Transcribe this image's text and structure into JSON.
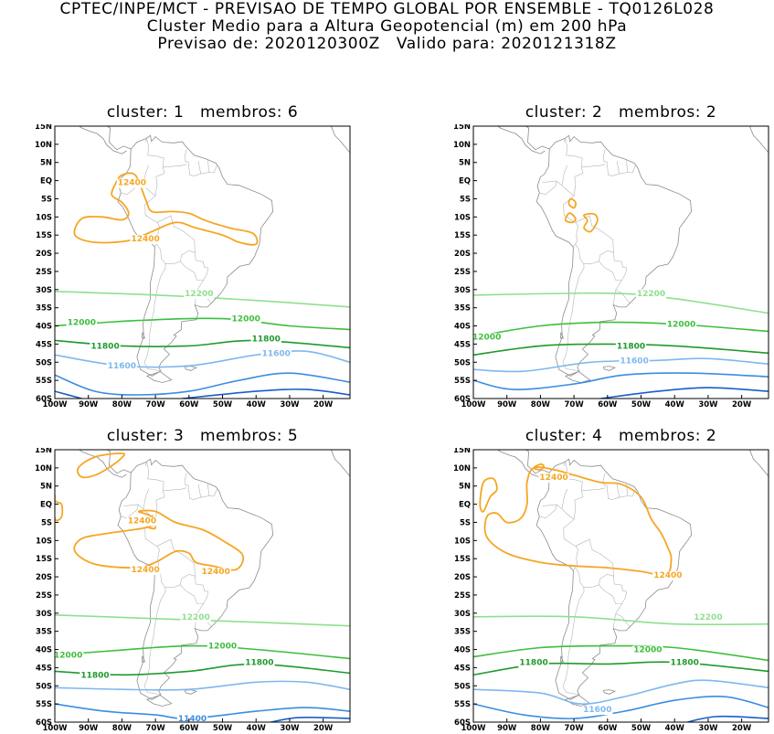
{
  "header": {
    "line1": "CPTEC/INPE/MCT - PREVISAO DE TEMPO GLOBAL POR ENSEMBLE - TQ0126L028",
    "line2": "Cluster Medio para a Altura Geopotencial (m) em 200 hPa",
    "line3": "Previsao de: 2020120300Z   Valido para: 2020121318Z"
  },
  "axes": {
    "lat_labels": [
      "15N",
      "10N",
      "5N",
      "EQ",
      "5S",
      "10S",
      "15S",
      "20S",
      "25S",
      "30S",
      "35S",
      "40S",
      "45S",
      "50S",
      "55S",
      "60S"
    ],
    "lon_labels": [
      "100W",
      "90W",
      "80W",
      "70W",
      "60W",
      "50W",
      "40W",
      "30W",
      "20W"
    ],
    "lat_range": [
      -60,
      15
    ],
    "lon_range": [
      -100,
      -12
    ]
  },
  "colors": {
    "c12400": "#f5a623",
    "c12200": "#8ee08e",
    "c12000": "#3cbf3c",
    "c11800": "#1f9a2c",
    "c11600": "#7db8f0",
    "c11400": "#3a8de0",
    "c11200": "#1a5ec8",
    "coast": "#8c8c8c"
  },
  "panels": [
    {
      "title": "cluster: 1   membros: 6",
      "labels": [
        {
          "text": "12400",
          "lon": -77,
          "lat": -0.5,
          "level": "c12400"
        },
        {
          "text": "12400",
          "lon": -73,
          "lat": -16,
          "level": "c12400"
        },
        {
          "text": "12200",
          "lon": -57,
          "lat": -31,
          "level": "c12200"
        },
        {
          "text": "12000",
          "lon": -92,
          "lat": -39,
          "level": "c12000"
        },
        {
          "text": "12000",
          "lon": -43,
          "lat": -38,
          "level": "c12000"
        },
        {
          "text": "11800",
          "lon": -85,
          "lat": -45.5,
          "level": "c11800"
        },
        {
          "text": "11800",
          "lon": -37,
          "lat": -43.5,
          "level": "c11800"
        },
        {
          "text": "11600",
          "lon": -34,
          "lat": -47.5,
          "level": "c11600"
        },
        {
          "text": "11600",
          "lon": -80,
          "lat": -51,
          "level": "c11600"
        }
      ]
    },
    {
      "title": "cluster: 2   membros: 2",
      "labels": [
        {
          "text": "12200",
          "lon": -47,
          "lat": -31,
          "level": "c12200"
        },
        {
          "text": "12000",
          "lon": -96,
          "lat": -43,
          "level": "c12000"
        },
        {
          "text": "12000",
          "lon": -38,
          "lat": -39.5,
          "level": "c12000"
        },
        {
          "text": "11800",
          "lon": -53,
          "lat": -45.5,
          "level": "c11800"
        },
        {
          "text": "11600",
          "lon": -52,
          "lat": -49.5,
          "level": "c11600"
        }
      ]
    },
    {
      "title": "cluster: 3   membros: 5",
      "labels": [
        {
          "text": "12400",
          "lon": -74,
          "lat": -4.5,
          "level": "c12400"
        },
        {
          "text": "12400",
          "lon": -73,
          "lat": -18,
          "level": "c12400"
        },
        {
          "text": "12400",
          "lon": -52,
          "lat": -18.5,
          "level": "c12400"
        },
        {
          "text": "12200",
          "lon": -58,
          "lat": -31,
          "level": "c12200"
        },
        {
          "text": "12000",
          "lon": -96,
          "lat": -41.5,
          "level": "c12000"
        },
        {
          "text": "12000",
          "lon": -50,
          "lat": -39,
          "level": "c12000"
        },
        {
          "text": "11800",
          "lon": -88,
          "lat": -47,
          "level": "c11800"
        },
        {
          "text": "11800",
          "lon": -39,
          "lat": -43.5,
          "level": "c11800"
        },
        {
          "text": "11400",
          "lon": -59,
          "lat": -59,
          "level": "c11400"
        }
      ]
    },
    {
      "title": "cluster: 4   membros: 2",
      "labels": [
        {
          "text": "12400",
          "lon": -76,
          "lat": 7.5,
          "level": "c12400"
        },
        {
          "text": "12400",
          "lon": -42,
          "lat": -19.5,
          "level": "c12400"
        },
        {
          "text": "12200",
          "lon": -30,
          "lat": -31,
          "level": "c12200"
        },
        {
          "text": "12000",
          "lon": -48,
          "lat": -40,
          "level": "c12000"
        },
        {
          "text": "11800",
          "lon": -82,
          "lat": -43.5,
          "level": "c11800"
        },
        {
          "text": "11800",
          "lon": -37,
          "lat": -43.5,
          "level": "c11800"
        },
        {
          "text": "11600",
          "lon": -63,
          "lat": -56.5,
          "level": "c11600"
        }
      ]
    }
  ]
}
